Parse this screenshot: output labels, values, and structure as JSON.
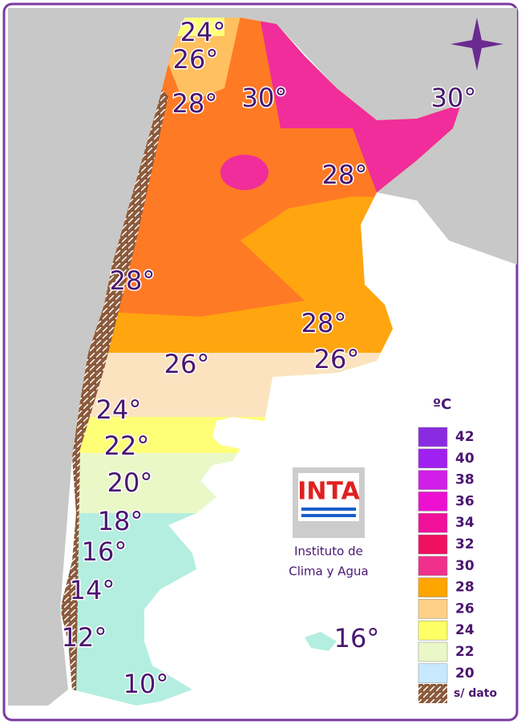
{
  "isotherm_labels": [
    "24°",
    "26°",
    "28°",
    "30°",
    "30°",
    "28°",
    "28°",
    "28°",
    "26°",
    "26°",
    "24°",
    "22°",
    "20°",
    "18°",
    "16°",
    "14°",
    "12°",
    "16°",
    "10°"
  ],
  "legend": {
    "unit": "ºC",
    "items": [
      {
        "label": "42",
        "color": "#8a2be2"
      },
      {
        "label": "40",
        "color": "#a020f0"
      },
      {
        "label": "38",
        "color": "#d020e8"
      },
      {
        "label": "36",
        "color": "#ee10d0"
      },
      {
        "label": "34",
        "color": "#f0109a"
      },
      {
        "label": "32",
        "color": "#f01060"
      },
      {
        "label": "30",
        "color": "#f0308c"
      },
      {
        "label": "28",
        "color": "#ffa500"
      },
      {
        "label": "26",
        "color": "#ffd088"
      },
      {
        "label": "24",
        "color": "#ffff66"
      },
      {
        "label": "22",
        "color": "#eaf8c8"
      },
      {
        "label": "20",
        "color": "#c8e8ff"
      }
    ],
    "no_data": "s/ dato"
  },
  "logo": {
    "name": "INTA",
    "line1": "Instituto de",
    "line2": "Clima y Agua"
  }
}
